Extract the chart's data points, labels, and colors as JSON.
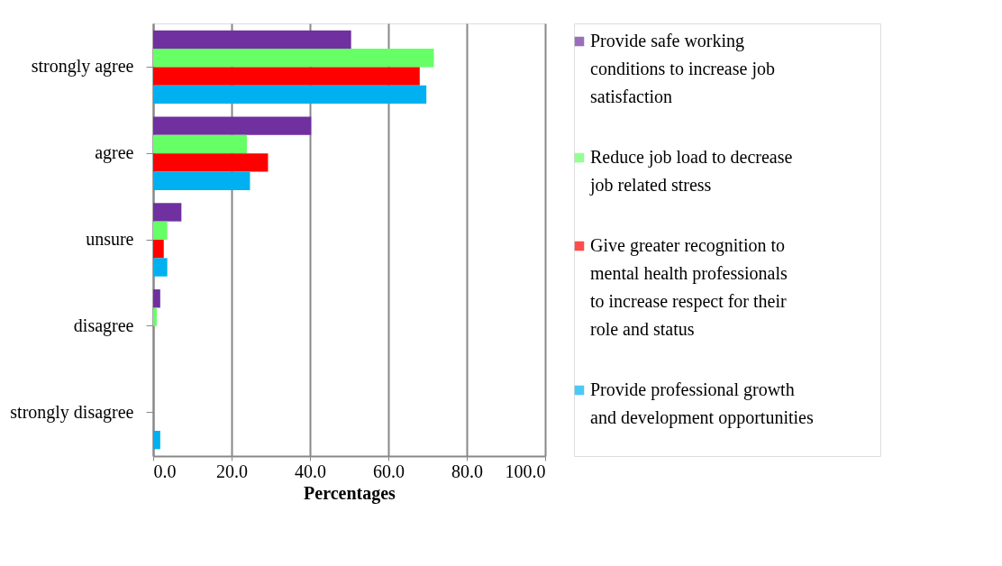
{
  "chart_data": {
    "type": "bar",
    "orientation": "horizontal",
    "xlabel": "Percentages",
    "categories": [
      "strongly agree",
      "agree",
      "unsure",
      "disagree",
      "strongly disagree"
    ],
    "series": [
      {
        "name": "Provide safe working conditions to increase job satisfaction",
        "color": "#7030a0",
        "values": [
          50.5,
          40.3,
          7.2,
          1.8,
          0
        ]
      },
      {
        "name": "Reduce job load to decrease job related stress",
        "color": "#66ff66",
        "values": [
          71.6,
          23.9,
          3.6,
          0.9,
          0
        ]
      },
      {
        "name": "Give greater recognition to mental health professionals to increase respect for their role and status",
        "color": "#ff0000",
        "values": [
          68.0,
          29.3,
          2.7,
          0,
          0
        ]
      },
      {
        "name": "Provide professional growth and development opportunities",
        "color": "#00b0f0",
        "values": [
          69.7,
          24.7,
          3.6,
          0,
          1.8
        ]
      }
    ],
    "xlim": [
      0,
      100
    ],
    "xticks": [
      {
        "value": 0,
        "label": "0.0"
      },
      {
        "value": 20,
        "label": "20.0"
      },
      {
        "value": 40,
        "label": "40.0"
      },
      {
        "value": 60,
        "label": "60.0"
      },
      {
        "value": 80,
        "label": "80.0"
      },
      {
        "value": 100,
        "label": "100.0"
      }
    ],
    "grid": "x",
    "legend": "right"
  }
}
